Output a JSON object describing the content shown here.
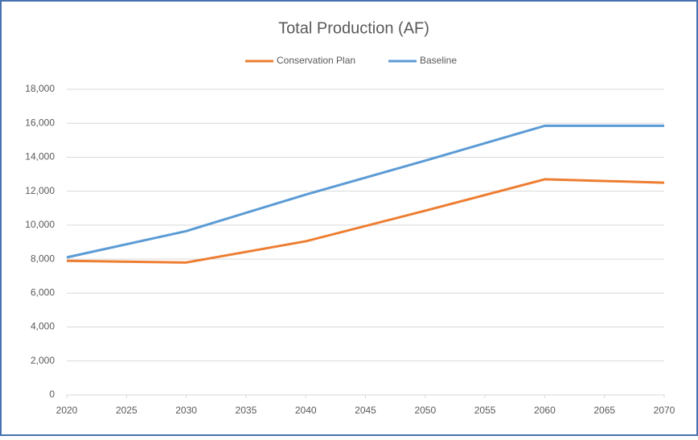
{
  "chart_data": {
    "type": "line",
    "title": "Total Production (AF)",
    "x": [
      2020,
      2030,
      2040,
      2050,
      2060,
      2070
    ],
    "series": [
      {
        "name": "Conservation Plan",
        "color": "#ed7d31",
        "values": [
          7900,
          7800,
          9050,
          10850,
          12700,
          12500
        ]
      },
      {
        "name": "Baseline",
        "color": "#5b9bd5",
        "values": [
          8100,
          9650,
          11800,
          13800,
          15850,
          15850
        ]
      }
    ],
    "xlim": [
      2020,
      2070
    ],
    "xticks": [
      2020,
      2025,
      2030,
      2035,
      2040,
      2045,
      2050,
      2055,
      2060,
      2065,
      2070
    ],
    "ylim": [
      0,
      18000
    ],
    "yticks": [
      0,
      {
        "value": 2000,
        "label": "2,000"
      },
      {
        "value": 4000,
        "label": "4,000"
      },
      {
        "value": 6000,
        "label": "6,000"
      },
      {
        "value": 8000,
        "label": "8,000"
      },
      {
        "value": 10000,
        "label": "10,000"
      },
      {
        "value": 12000,
        "label": "12,000"
      },
      {
        "value": 14000,
        "label": "14,000"
      },
      {
        "value": 16000,
        "label": "16,000"
      },
      {
        "value": 18000,
        "label": "18,000"
      }
    ],
    "grid": true,
    "legend": "top"
  }
}
